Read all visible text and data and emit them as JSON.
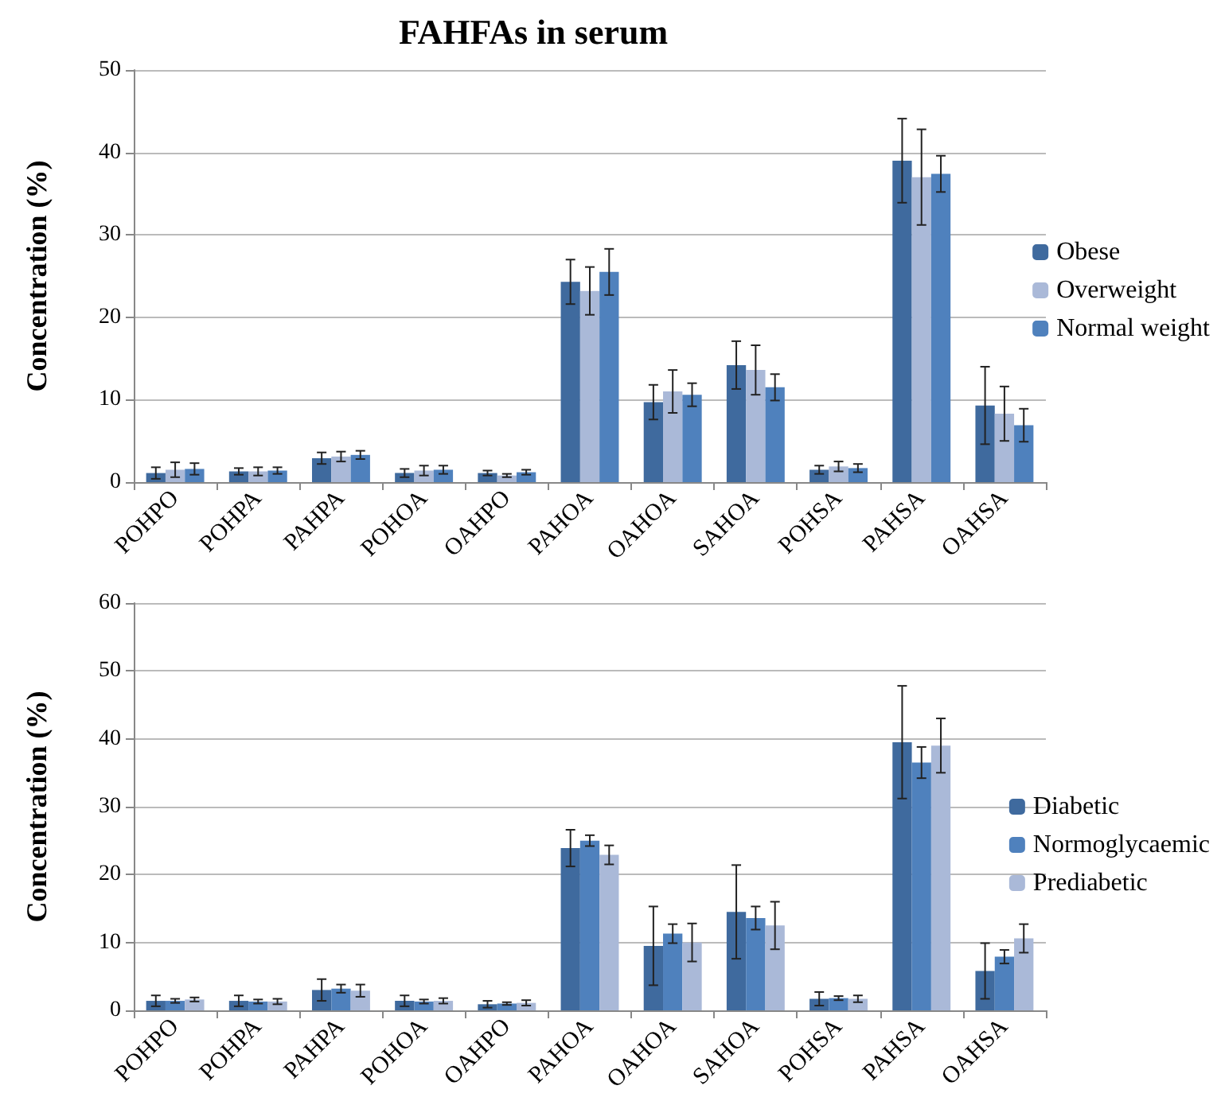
{
  "chart_data": [
    {
      "type": "bar",
      "title": "FAHFAs in serum",
      "ylabel": "Concentration (%)",
      "categories": [
        "POHPO",
        "POHPA",
        "PAHPA",
        "POHOA",
        "OAHPO",
        "PAHOA",
        "OAHOA",
        "SAHOA",
        "POHSA",
        "PAHSA",
        "OAHSA"
      ],
      "series": [
        {
          "name": "Obese",
          "color": "#3f6a9e",
          "values": [
            1.1,
            1.3,
            2.9,
            1.1,
            1.1,
            24.3,
            9.7,
            14.2,
            1.5,
            39.0,
            9.3
          ],
          "errors": [
            0.7,
            0.4,
            0.7,
            0.5,
            0.3,
            2.7,
            2.1,
            2.9,
            0.5,
            5.1,
            4.7
          ]
        },
        {
          "name": "Overweight",
          "color": "#aab9d8",
          "values": [
            1.5,
            1.3,
            3.1,
            1.4,
            0.8,
            23.2,
            11.0,
            13.6,
            1.9,
            37.0,
            8.3
          ],
          "errors": [
            0.9,
            0.5,
            0.6,
            0.6,
            0.2,
            2.9,
            2.6,
            3.0,
            0.6,
            5.8,
            3.3
          ]
        },
        {
          "name": "Normal weight",
          "color": "#4f81bd",
          "values": [
            1.6,
            1.4,
            3.3,
            1.5,
            1.2,
            25.5,
            10.6,
            11.5,
            1.7,
            37.4,
            6.9
          ],
          "errors": [
            0.7,
            0.4,
            0.5,
            0.5,
            0.3,
            2.8,
            1.4,
            1.6,
            0.5,
            2.2,
            2.0
          ]
        }
      ],
      "ylim": [
        0,
        50
      ],
      "yticks": [
        0,
        10,
        20,
        30,
        40,
        50
      ],
      "grid": "y",
      "legend": "right"
    },
    {
      "type": "bar",
      "ylabel": "Concentration (%)",
      "categories": [
        "POHPO",
        "POHPA",
        "PAHPA",
        "POHOA",
        "OAHPO",
        "PAHOA",
        "OAHOA",
        "SAHOA",
        "POHSA",
        "PAHSA",
        "OAHSA"
      ],
      "series": [
        {
          "name": "Diabetic",
          "color": "#3f6a9e",
          "values": [
            1.4,
            1.4,
            3.0,
            1.4,
            0.9,
            23.9,
            9.5,
            14.5,
            1.7,
            39.5,
            5.8
          ],
          "errors": [
            0.8,
            0.8,
            1.6,
            0.8,
            0.5,
            2.7,
            5.8,
            6.9,
            1.0,
            8.3,
            4.1
          ]
        },
        {
          "name": "Normoglycaemic",
          "color": "#4f81bd",
          "values": [
            1.4,
            1.3,
            3.2,
            1.3,
            1.0,
            25.0,
            11.3,
            13.6,
            1.8,
            36.5,
            7.9
          ],
          "errors": [
            0.3,
            0.3,
            0.6,
            0.3,
            0.2,
            0.8,
            1.4,
            1.7,
            0.3,
            2.3,
            1.0
          ]
        },
        {
          "name": "Prediabetic",
          "color": "#aab9d8",
          "values": [
            1.6,
            1.3,
            2.9,
            1.4,
            1.1,
            22.9,
            10.0,
            12.5,
            1.7,
            39.0,
            10.6
          ],
          "errors": [
            0.3,
            0.4,
            0.9,
            0.4,
            0.4,
            1.4,
            2.8,
            3.5,
            0.5,
            4.0,
            2.1
          ]
        }
      ],
      "ylim": [
        0,
        60
      ],
      "yticks": [
        0,
        10,
        20,
        30,
        40,
        50,
        60
      ],
      "grid": "y",
      "legend": "right"
    }
  ]
}
